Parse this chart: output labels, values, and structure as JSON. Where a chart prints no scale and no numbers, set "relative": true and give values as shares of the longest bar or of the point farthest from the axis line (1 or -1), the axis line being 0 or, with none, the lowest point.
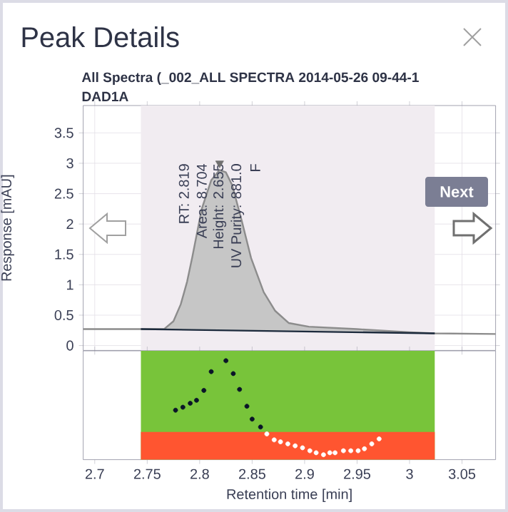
{
  "chart_data": [
    {
      "type": "line",
      "title": "Peak Details",
      "subtitle": "All Spectra (_002_ALL SPECTRA 2014-05-26 09-44-1",
      "ylabel": "Response [mAU]",
      "annotations": [
        "DAD1A",
        "Next",
        "RT: 2.819",
        "Area: 8.704",
        "Height: 2.655",
        "UV Purity: 881.0",
        "F"
      ],
      "xlim": [
        2.689,
        3.082
      ],
      "ylim": [
        -0.08,
        3.95
      ],
      "xticks": [
        2.7,
        2.75,
        2.8,
        2.85,
        2.9,
        2.95,
        3,
        3.05
      ],
      "yticks": [
        0,
        0.5,
        1,
        1.5,
        2,
        2.5,
        3,
        3.5
      ],
      "tick_labels": "y",
      "grid": true,
      "bands": [
        {
          "axis": "x",
          "from": 2.744,
          "to": 3.024,
          "color": "#f1ecf1"
        }
      ],
      "series": [
        {
          "color": "#8c8c8c",
          "x": [
            2.689,
            2.744,
            2.766,
            2.775,
            2.782,
            2.788,
            2.793,
            2.802,
            2.811,
            2.819,
            2.825,
            2.831,
            2.84,
            2.849,
            2.861,
            2.872,
            2.885,
            2.904,
            2.95,
            3.0,
            3.024,
            3.082
          ],
          "values": [
            0.27,
            0.27,
            0.27,
            0.4,
            0.68,
            1.05,
            1.46,
            2.25,
            2.72,
            2.89,
            2.85,
            2.64,
            2.06,
            1.44,
            0.88,
            0.57,
            0.37,
            0.31,
            0.27,
            0.22,
            0.2,
            0.19
          ],
          "lower": [
            null,
            0.27,
            0.26,
            0.26,
            0.26,
            0.26,
            0.25,
            0.25,
            0.25,
            0.25,
            0.25,
            0.25,
            0.24,
            0.24,
            0.24,
            0.24,
            0.23,
            0.23,
            0.22,
            0.21,
            0.2,
            null
          ],
          "upper": [
            null,
            0.27,
            0.27,
            0.4,
            0.68,
            1.05,
            1.46,
            2.25,
            2.72,
            2.89,
            2.85,
            2.64,
            2.06,
            1.44,
            0.88,
            0.57,
            0.37,
            0.31,
            0.27,
            0.22,
            0.2,
            null
          ]
        },
        {
          "color": "#1c2a3c",
          "x": [
            2.744,
            3.024
          ],
          "values": [
            0.27,
            0.2
          ]
        },
        {
          "type": "scatter",
          "marker": "triangle",
          "color": "#707070",
          "x": [
            2.819
          ],
          "values": [
            3.0
          ]
        }
      ]
    },
    {
      "type": "scatter",
      "xlabel": "Retention time [min]",
      "relative": true,
      "xlim": [
        2.689,
        3.082
      ],
      "xticks": [
        2.7,
        2.75,
        2.8,
        2.85,
        2.9,
        2.95,
        3,
        3.05
      ],
      "tick_labels": "x",
      "marker": "circle",
      "bands": [
        {
          "axis": "x",
          "from": 2.744,
          "to": 3.024,
          "color": "#78c43a"
        },
        {
          "axis": "y",
          "from": 0,
          "to": 0.28,
          "color": "#ff5530"
        }
      ],
      "series": [
        {
          "color": "#0a1428",
          "x": [
            2.777,
            2.784,
            2.791,
            2.797,
            2.804,
            2.811,
            2.825,
            2.832,
            2.838,
            2.845,
            2.85,
            2.858
          ],
          "values": [
            0.5,
            0.53,
            0.57,
            0.6,
            0.7,
            0.89,
            1,
            0.87,
            0.71,
            0.54,
            0.41,
            0.33
          ]
        },
        {
          "color": "#ffffff",
          "x": [
            2.864,
            2.871,
            2.877,
            2.884,
            2.891,
            2.898,
            2.905,
            2.911,
            2.918,
            2.924,
            2.929,
            2.937,
            2.944,
            2.951,
            2.957,
            2.964,
            2.971
          ],
          "values": [
            0.26,
            0.2,
            0.18,
            0.16,
            0.14,
            0.12,
            0.09,
            0.07,
            0.05,
            0.07,
            0.07,
            0.09,
            0.09,
            0.09,
            0.11,
            0.16,
            0.21
          ]
        }
      ]
    }
  ]
}
